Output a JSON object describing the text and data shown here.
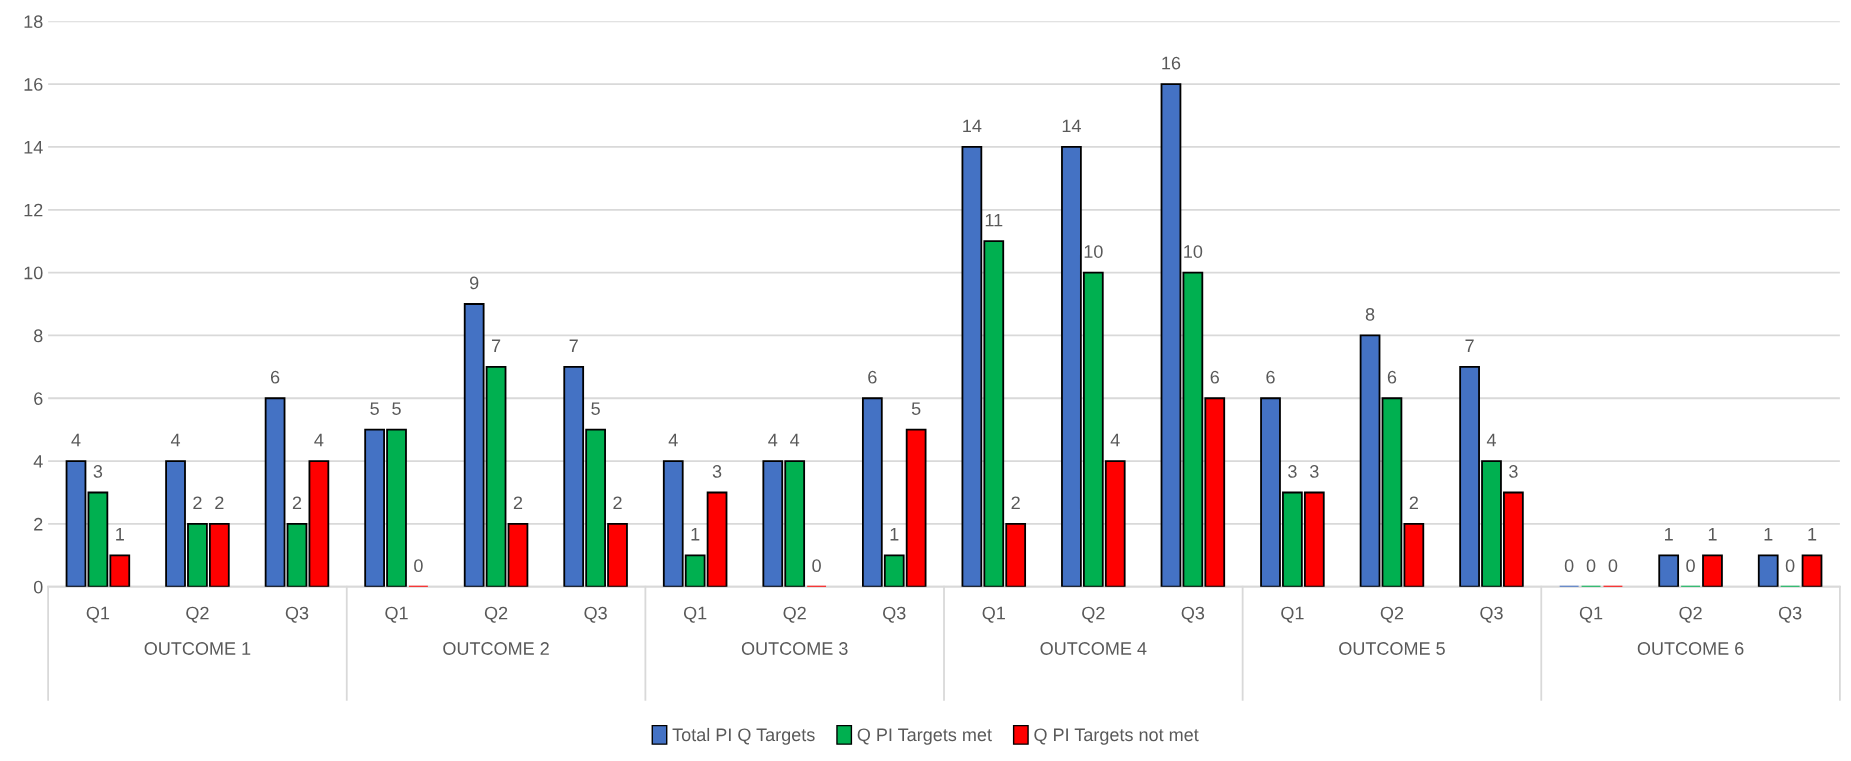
{
  "chart_data": {
    "type": "bar",
    "categories": [
      "Q1",
      "Q2",
      "Q3",
      "Q1",
      "Q2",
      "Q3",
      "Q1",
      "Q2",
      "Q3",
      "Q1",
      "Q2",
      "Q3",
      "Q1",
      "Q2",
      "Q3",
      "Q1",
      "Q2",
      "Q3"
    ],
    "annotations": [
      "OUTCOME 1",
      "OUTCOME 2",
      "OUTCOME 3",
      "OUTCOME 4",
      "OUTCOME 5",
      "OUTCOME 6"
    ],
    "series": [
      {
        "name": "Total PI Q Targets",
        "color": "#4472c4",
        "values": [
          4,
          4,
          6,
          5,
          9,
          7,
          4,
          4,
          6,
          14,
          14,
          16,
          6,
          8,
          7,
          0,
          1,
          1
        ]
      },
      {
        "name": "Q PI Targets met",
        "color": "#00b050",
        "values": [
          3,
          2,
          2,
          5,
          7,
          5,
          1,
          4,
          1,
          11,
          10,
          10,
          3,
          6,
          4,
          0,
          0,
          0
        ]
      },
      {
        "name": "Q PI Targets not met",
        "color": "#ff0000",
        "values": [
          1,
          2,
          4,
          0,
          2,
          2,
          3,
          0,
          5,
          2,
          4,
          6,
          3,
          2,
          3,
          0,
          1,
          1
        ]
      }
    ],
    "ylim": [
      0,
      18
    ],
    "yticks": [
      0,
      2,
      4,
      6,
      8,
      10,
      12,
      14,
      16,
      18
    ],
    "grid": "y",
    "legend": "bottom",
    "data_labels": true
  }
}
